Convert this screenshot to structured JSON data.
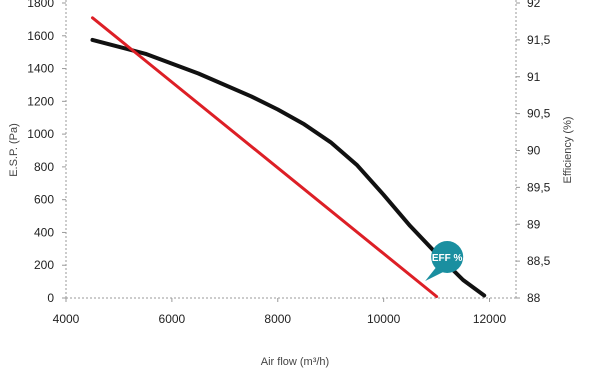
{
  "chart_data": {
    "type": "line",
    "xlabel": "Air flow (m³/h)",
    "ylabel_left": "E.S.P. (Pa)",
    "ylabel_right": "Efficiency (%)",
    "xlim": [
      4000,
      12500
    ],
    "ylim_left": [
      0,
      1800
    ],
    "ylim_right": [
      88,
      92
    ],
    "x_ticks": [
      4000,
      6000,
      8000,
      10000,
      12000
    ],
    "x_tick_labels": [
      "4000",
      "6000",
      "8000",
      "10000",
      "12000"
    ],
    "y_left_ticks": [
      0,
      200,
      400,
      600,
      800,
      1000,
      1200,
      1400,
      1600,
      1800
    ],
    "y_left_tick_labels": [
      "0",
      "200",
      "400",
      "600",
      "800",
      "1000",
      "1200",
      "1400",
      "1600",
      "1800"
    ],
    "y_right_ticks": [
      88,
      88.5,
      89,
      89.5,
      90,
      90.5,
      91,
      91.5,
      92
    ],
    "y_right_tick_labels": [
      "88",
      "88,5",
      "89",
      "89,5",
      "90",
      "90,5",
      "91",
      "91,5",
      "92"
    ],
    "grid": false,
    "series": [
      {
        "axis": "left",
        "color": "#111111",
        "points": [
          [
            4500,
            1575
          ],
          [
            5500,
            1490
          ],
          [
            6500,
            1370
          ],
          [
            7500,
            1230
          ],
          [
            8000,
            1150
          ],
          [
            8500,
            1060
          ],
          [
            9000,
            950
          ],
          [
            9500,
            810
          ],
          [
            10000,
            630
          ],
          [
            10500,
            440
          ],
          [
            11000,
            270
          ],
          [
            11500,
            110
          ],
          [
            11900,
            15
          ]
        ]
      },
      {
        "axis": "right",
        "color": "#dd1f26",
        "points": [
          [
            4500,
            91.8
          ],
          [
            11000,
            88.02
          ]
        ]
      }
    ],
    "annotations": [
      {
        "text": "EFF %",
        "x": 11200,
        "y_left": 250,
        "color": "#1a8fa0"
      }
    ]
  }
}
